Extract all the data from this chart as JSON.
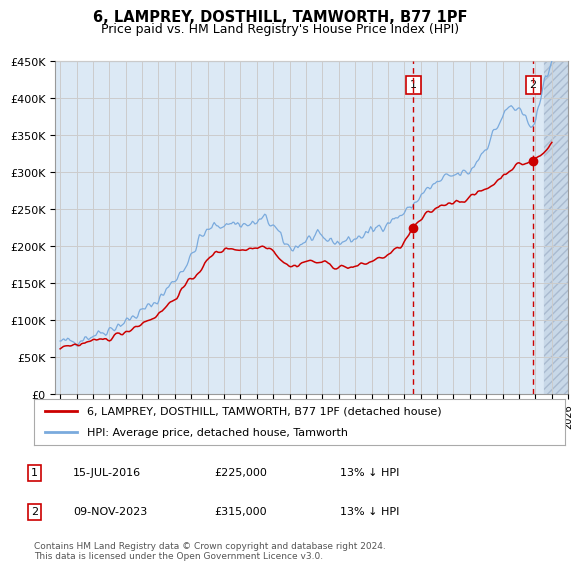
{
  "title": "6, LAMPREY, DOSTHILL, TAMWORTH, B77 1PF",
  "subtitle": "Price paid vs. HM Land Registry's House Price Index (HPI)",
  "legend_line1": "6, LAMPREY, DOSTHILL, TAMWORTH, B77 1PF (detached house)",
  "legend_line2": "HPI: Average price, detached house, Tamworth",
  "annotation1_date": "15-JUL-2016",
  "annotation1_price": "£225,000",
  "annotation1_hpi": "13% ↓ HPI",
  "annotation2_date": "09-NOV-2023",
  "annotation2_price": "£315,000",
  "annotation2_hpi": "13% ↓ HPI",
  "footer": "Contains HM Land Registry data © Crown copyright and database right 2024.\nThis data is licensed under the Open Government Licence v3.0.",
  "xmin": 1995,
  "xmax": 2026,
  "ymin": 0,
  "ymax": 450000,
  "yticks": [
    0,
    50000,
    100000,
    150000,
    200000,
    250000,
    300000,
    350000,
    400000,
    450000
  ],
  "grid_color": "#cccccc",
  "plot_bg_color": "#dce9f5",
  "red_line_color": "#cc0000",
  "blue_line_color": "#7aaadd",
  "vline_color": "#cc0000",
  "vline1_x": 2016.54,
  "vline2_x": 2023.86,
  "hatch_start": 2024.5,
  "sale1_x": 2016.54,
  "sale1_y": 225000,
  "sale2_x": 2023.86,
  "sale2_y": 315000
}
